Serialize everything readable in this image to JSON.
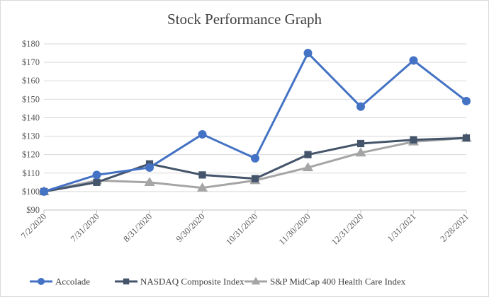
{
  "chart_data": {
    "type": "line",
    "title": "Stock Performance Graph",
    "xlabel": "",
    "ylabel": "",
    "categories": [
      "7/2/2020",
      "7/31/2020",
      "8/31/2020",
      "9/30/2020",
      "10/31/2020",
      "11/30/2020",
      "12/31/2020",
      "1/31/2021",
      "2/28/2021"
    ],
    "y_ticks": [
      "$90",
      "$100",
      "$110",
      "$120",
      "$130",
      "$140",
      "$150",
      "$160",
      "$170",
      "$180"
    ],
    "ylim": [
      90,
      180
    ],
    "grid": true,
    "legend_position": "bottom",
    "series": [
      {
        "name": "Accolade",
        "color": "#4472C4",
        "marker": "circle",
        "values": [
          100,
          109,
          113,
          131,
          118,
          175,
          146,
          171,
          149
        ]
      },
      {
        "name": "NASDAQ Composite Index",
        "color": "#44546A",
        "marker": "square",
        "values": [
          100,
          105,
          115,
          109,
          107,
          120,
          126,
          128,
          129
        ]
      },
      {
        "name": "S&P MidCap 400 Health Care Index",
        "color": "#A5A5A5",
        "marker": "triangle",
        "values": [
          100,
          106,
          105,
          102,
          106,
          113,
          121,
          127,
          129
        ]
      }
    ]
  }
}
